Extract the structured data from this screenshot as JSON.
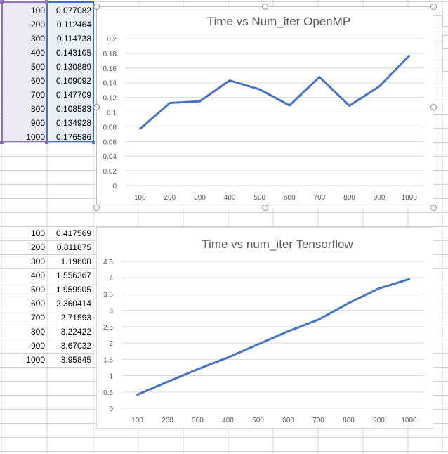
{
  "sheet": {
    "table_openmp": {
      "rows": [
        {
          "n": "100",
          "time": "0.077082"
        },
        {
          "n": "200",
          "time": "0.112464"
        },
        {
          "n": "300",
          "time": "0.114738"
        },
        {
          "n": "400",
          "time": "0.143105"
        },
        {
          "n": "500",
          "time": "0.130889"
        },
        {
          "n": "600",
          "time": "0.109092"
        },
        {
          "n": "700",
          "time": "0.147709"
        },
        {
          "n": "800",
          "time": "0.108583"
        },
        {
          "n": "900",
          "time": "0.134928"
        },
        {
          "n": "1000",
          "time": "0.176586"
        }
      ]
    },
    "table_tensorflow": {
      "rows": [
        {
          "n": "100",
          "time": "0.417569"
        },
        {
          "n": "200",
          "time": "0.811875"
        },
        {
          "n": "300",
          "time": "1.19608"
        },
        {
          "n": "400",
          "time": "1.556367"
        },
        {
          "n": "500",
          "time": "1.959905"
        },
        {
          "n": "600",
          "time": "2.360414"
        },
        {
          "n": "700",
          "time": "2.71593"
        },
        {
          "n": "800",
          "time": "3.22422"
        },
        {
          "n": "900",
          "time": "3.67032"
        },
        {
          "n": "1000",
          "time": "3.95845"
        }
      ]
    }
  },
  "colors": {
    "series_line": "#4472c4",
    "gridline": "#d9d9d9",
    "axis_text": "#595959",
    "title_text": "#595959",
    "selection_purple": "#8e6fc0",
    "selection_blue": "#3b74c4",
    "cell_border": "#d4d4d4"
  },
  "chart_data": [
    {
      "type": "line",
      "title": "Time vs Num_iter OpenMP",
      "selected": true,
      "categories": [
        "100",
        "200",
        "300",
        "400",
        "500",
        "600",
        "700",
        "800",
        "900",
        "1000"
      ],
      "values": [
        0.077082,
        0.112464,
        0.114738,
        0.143105,
        0.130889,
        0.109092,
        0.147709,
        0.108583,
        0.134928,
        0.176586
      ],
      "ylim": [
        0,
        0.2
      ],
      "yticks": [
        "0",
        "0.02",
        "0.04",
        "0.06",
        "0.08",
        "0.1",
        "0.12",
        "0.14",
        "0.16",
        "0.18",
        "0.2"
      ],
      "grid": true,
      "xlabel": "",
      "ylabel": ""
    },
    {
      "type": "line",
      "title": "Time vs num_iter Tensorflow",
      "selected": false,
      "categories": [
        "100",
        "200",
        "300",
        "400",
        "500",
        "600",
        "700",
        "800",
        "900",
        "1000"
      ],
      "values": [
        0.417569,
        0.811875,
        1.19608,
        1.556367,
        1.959905,
        2.360414,
        2.71593,
        3.22422,
        3.67032,
        3.95845
      ],
      "ylim": [
        0,
        4.5
      ],
      "yticks": [
        "0",
        "0.5",
        "1",
        "1.5",
        "2",
        "2.5",
        "3",
        "3.5",
        "4",
        "4.5"
      ],
      "grid": true,
      "xlabel": "",
      "ylabel": ""
    }
  ]
}
